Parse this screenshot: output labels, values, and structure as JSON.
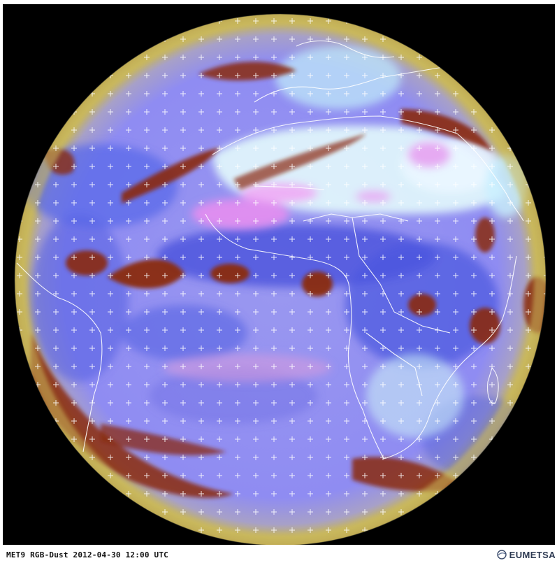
{
  "image": {
    "caption": "MET9 RGB-Dust 2012-04-30 12:00 UTC",
    "brand": "EUMETSA",
    "colors": {
      "space": "#000000",
      "ocean_clear": "#8f8cf2",
      "deep_blue": "#4f5be0",
      "thick_cloud": "#8a2a12",
      "dust": "#e08ef0",
      "desert_clear": "#dff4fb",
      "limb": "#c8b75a",
      "coastline": "#ffffff"
    }
  }
}
